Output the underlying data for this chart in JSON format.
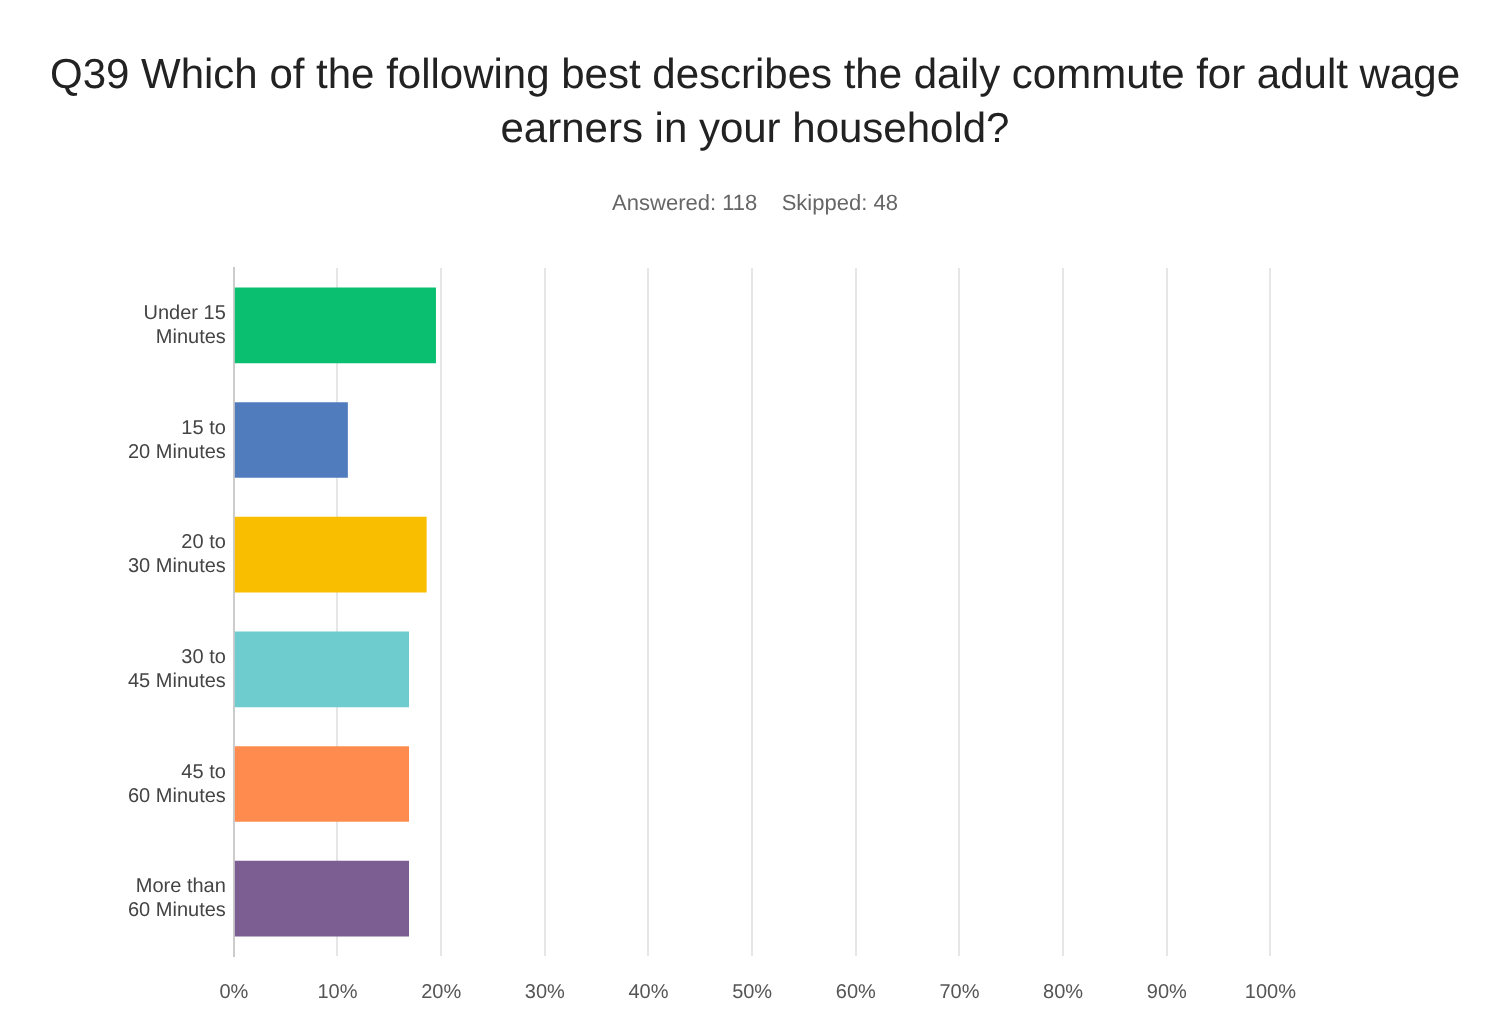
{
  "chart_data": {
    "type": "bar",
    "orientation": "horizontal",
    "title": "Q39 Which of the following best describes the daily commute for adult wage earners in your household?",
    "subtitle": "Answered: 118    Skipped: 48",
    "categories": [
      "Under 15 Minutes",
      "15 to 20 Minutes",
      "20 to 30 Minutes",
      "30 to 45 Minutes",
      "45 to 60 Minutes",
      "More than 60 Minutes"
    ],
    "values": [
      19.5,
      11.0,
      18.6,
      16.9,
      16.9,
      16.9
    ],
    "colors": [
      "#0bbf71",
      "#507cbd",
      "#f9be00",
      "#6ecbce",
      "#ff8b4f",
      "#7d5e92"
    ],
    "xlim": [
      0,
      100
    ],
    "xticks": [
      {
        "value": 0,
        "label": "0%"
      },
      {
        "value": 10,
        "label": "10%"
      },
      {
        "value": 20,
        "label": "20%"
      },
      {
        "value": 30,
        "label": "30%"
      },
      {
        "value": 40,
        "label": "40%"
      },
      {
        "value": 50,
        "label": "50%"
      },
      {
        "value": 60,
        "label": "60%"
      },
      {
        "value": 70,
        "label": "70%"
      },
      {
        "value": 80,
        "label": "80%"
      },
      {
        "value": 90,
        "label": "90%"
      },
      {
        "value": 100,
        "label": "100%"
      }
    ],
    "grid": "x",
    "legend": false
  }
}
